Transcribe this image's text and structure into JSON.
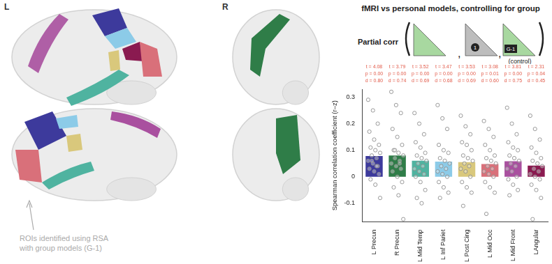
{
  "brain_panel": {
    "hemisphere_labels": [
      "L",
      "R"
    ],
    "note": [
      "ROIs identified using RSA",
      "with group models (G-1)"
    ]
  },
  "model_diagram": {
    "label": "Partial corr",
    "middle": "1",
    "control": "G-1",
    "control_note": "(control)"
  },
  "chart_data": {
    "type": "bar",
    "title": "fMRI vs personal models, controlling for group",
    "y_label": "Spearman correlation coefficient (r–z)",
    "categories": [
      "L Precun",
      "R Precun",
      "L Mid Temp",
      "L Inf Pariet",
      "L Post Cing",
      "L Mid Occ",
      "L Mid Front",
      "LAngular"
    ],
    "values": [
      0.078,
      0.08,
      0.06,
      0.057,
      0.055,
      0.048,
      0.058,
      0.042
    ],
    "colors": [
      "#3d3a9c",
      "#2f7d48",
      "#4fb3a0",
      "#8ccbe8",
      "#d9c87c",
      "#d9707a",
      "#a9509f",
      "#8a1a50"
    ],
    "points": [
      [
        0.29,
        0.25,
        0.2,
        0.17,
        0.14,
        0.12,
        0.11,
        0.1,
        0.09,
        0.08,
        0.07,
        0.06,
        0.05,
        0.04,
        0.03,
        0.02,
        0.01,
        -0.01,
        -0.03,
        -0.08,
        0.06,
        0.04
      ],
      [
        0.32,
        0.27,
        0.24,
        0.18,
        0.15,
        0.12,
        0.1,
        0.09,
        0.08,
        0.07,
        0.06,
        0.05,
        0.04,
        0.03,
        0.02,
        0.0,
        -0.02,
        -0.04,
        -0.07,
        -0.16,
        0.1,
        0.05
      ],
      [
        0.24,
        0.2,
        0.16,
        0.13,
        0.11,
        0.09,
        0.08,
        0.07,
        0.06,
        0.05,
        0.04,
        0.03,
        0.02,
        0.01,
        0.0,
        -0.02,
        -0.05,
        -0.08,
        -0.1
      ],
      [
        0.27,
        0.22,
        0.18,
        0.12,
        0.1,
        0.09,
        0.07,
        0.06,
        0.05,
        0.04,
        0.03,
        0.02,
        0.01,
        0.0,
        -0.02,
        -0.04,
        -0.06,
        -0.08
      ],
      [
        0.23,
        0.19,
        0.16,
        0.13,
        0.12,
        0.1,
        0.08,
        0.07,
        0.06,
        0.05,
        0.04,
        0.03,
        0.02,
        0.0,
        -0.02,
        -0.04,
        -0.06,
        -0.11
      ],
      [
        0.21,
        0.18,
        0.15,
        0.12,
        0.1,
        0.08,
        0.07,
        0.06,
        0.05,
        0.04,
        0.03,
        0.02,
        0.01,
        0.0,
        -0.02,
        -0.04,
        -0.06,
        -0.14
      ],
      [
        0.26,
        0.2,
        0.16,
        0.13,
        0.11,
        0.1,
        0.08,
        0.07,
        0.06,
        0.05,
        0.04,
        0.03,
        0.02,
        0.0,
        -0.01,
        -0.03,
        -0.05,
        -0.07
      ],
      [
        0.23,
        0.18,
        0.14,
        0.11,
        0.09,
        0.07,
        0.06,
        0.05,
        0.04,
        0.03,
        0.02,
        0.01,
        0.0,
        -0.01,
        -0.03,
        -0.05,
        -0.08,
        -0.16
      ]
    ],
    "annotations": [
      [
        "t = 4.08",
        "p = 0.00",
        "d = 0.80"
      ],
      [
        "t = 3.79",
        "p = 0.00",
        "d = 0.74"
      ],
      [
        "t = 3.52",
        "p = 0.00",
        "d = 0.69"
      ],
      [
        "t = 3.47",
        "p = 0.00",
        "d = 0.68"
      ],
      [
        "t = 3.53",
        "p = 0.00",
        "d = 0.69"
      ],
      [
        "t = 3.08",
        "p = 0.01",
        "d = 0.60"
      ],
      [
        "t = 3.81",
        "p = 0.00",
        "d = 0.75"
      ],
      [
        "t = 2.31",
        "p = 0.04",
        "d = 0.45"
      ]
    ],
    "ylim": [
      -0.17,
      0.33
    ],
    "yticks": [
      -0.1,
      0,
      0.1,
      0.2,
      0.3
    ],
    "grid": false
  }
}
